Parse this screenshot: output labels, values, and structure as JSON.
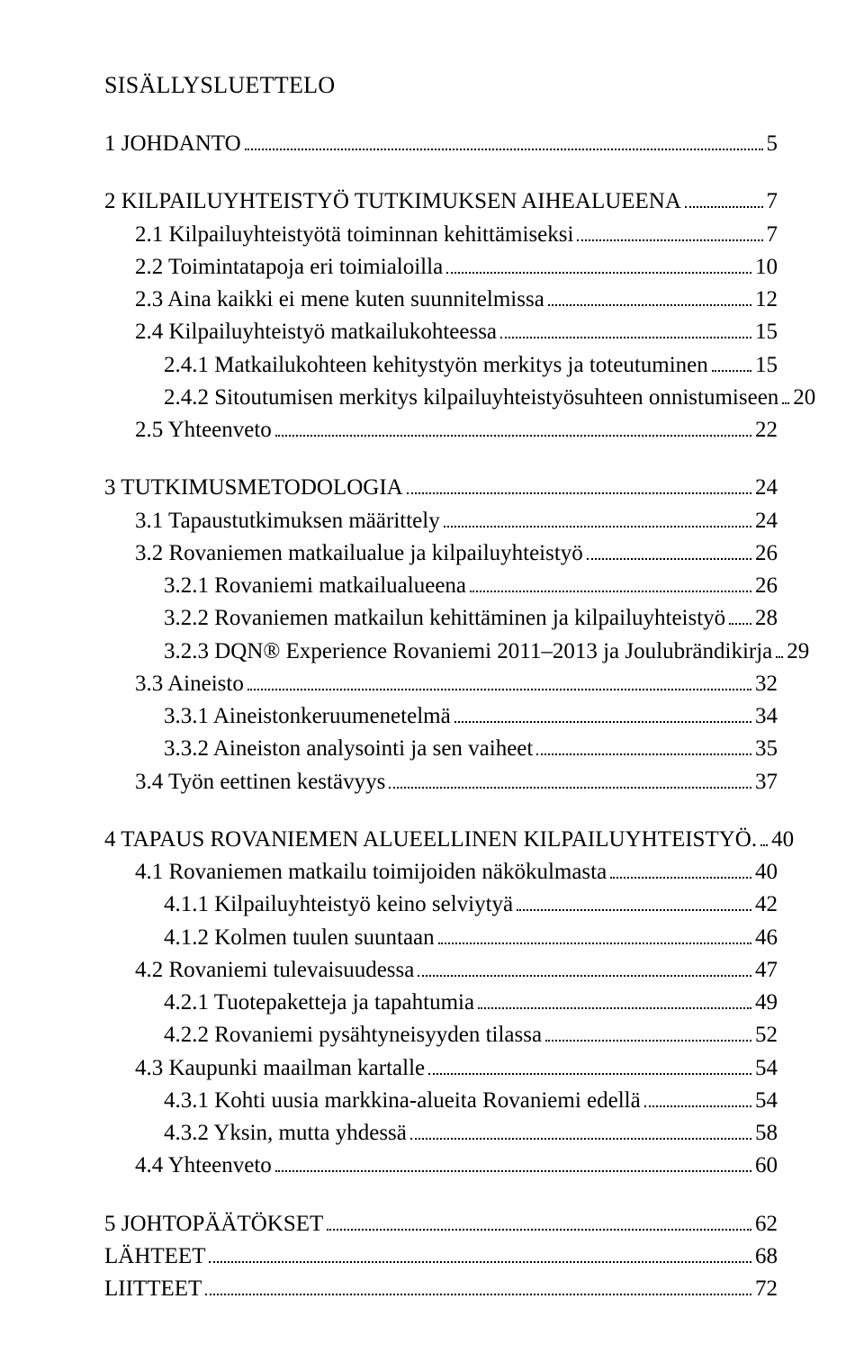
{
  "title": "SISÄLLYSLUETTELO",
  "font_family": "Times New Roman",
  "text_color": "#000000",
  "background_color": "#ffffff",
  "title_fontsize": 26,
  "body_fontsize": 25,
  "entries": [
    {
      "level": 0,
      "label": "1 JOHDANTO",
      "page": "5",
      "gap_before": false
    },
    {
      "level": 0,
      "label": "2 KILPAILUYHTEISTYÖ TUTKIMUKSEN AIHEALUEENA",
      "page": "7",
      "gap_before": true
    },
    {
      "level": 1,
      "label": "2.1 Kilpailuyhteistyötä toiminnan kehittämiseksi",
      "page": "7"
    },
    {
      "level": 1,
      "label": "2.2 Toimintatapoja eri toimialoilla",
      "page": "10"
    },
    {
      "level": 1,
      "label": "2.3 Aina kaikki ei mene kuten suunnitelmissa",
      "page": "12"
    },
    {
      "level": 1,
      "label": "2.4 Kilpailuyhteistyö matkailukohteessa",
      "page": "15"
    },
    {
      "level": 2,
      "label": "2.4.1 Matkailukohteen kehitystyön merkitys ja toteutuminen",
      "page": "15"
    },
    {
      "level": 2,
      "label": "2.4.2 Sitoutumisen merkitys kilpailuyhteistyösuhteen onnistumiseen",
      "page": "20"
    },
    {
      "level": 1,
      "label": "2.5 Yhteenveto",
      "page": "22"
    },
    {
      "level": 0,
      "label": "3 TUTKIMUSMETODOLOGIA",
      "page": "24",
      "gap_before": true
    },
    {
      "level": 1,
      "label": "3.1 Tapaustutkimuksen määrittely",
      "page": "24"
    },
    {
      "level": 1,
      "label": "3.2 Rovaniemen matkailualue ja kilpailuyhteistyö",
      "page": "26"
    },
    {
      "level": 2,
      "label": "3.2.1 Rovaniemi matkailualueena",
      "page": "26"
    },
    {
      "level": 2,
      "label": "3.2.2 Rovaniemen matkailun kehittäminen ja kilpailuyhteistyö",
      "page": "28"
    },
    {
      "level": 2,
      "label": "3.2.3 DQN® Experience Rovaniemi 2011–2013 ja Joulubrändikirja",
      "page": "29"
    },
    {
      "level": 1,
      "label": "3.3 Aineisto",
      "page": "32"
    },
    {
      "level": 2,
      "label": "3.3.1 Aineistonkeruumenetelmä",
      "page": "34"
    },
    {
      "level": 2,
      "label": "3.3.2 Aineiston analysointi ja sen vaiheet",
      "page": "35"
    },
    {
      "level": 1,
      "label": "3.4 Työn eettinen kestävyys",
      "page": "37"
    },
    {
      "level": 0,
      "label": "4 TAPAUS ROVANIEMEN ALUEELLINEN KILPAILUYHTEISTYÖ.",
      "page": "40",
      "gap_before": true
    },
    {
      "level": 1,
      "label": "4.1 Rovaniemen matkailu toimijoiden näkökulmasta",
      "page": "40"
    },
    {
      "level": 2,
      "label": "4.1.1 Kilpailuyhteistyö keino selviytyä",
      "page": "42"
    },
    {
      "level": 2,
      "label": "4.1.2 Kolmen tuulen suuntaan",
      "page": "46"
    },
    {
      "level": 1,
      "label": "4.2 Rovaniemi tulevaisuudessa",
      "page": "47"
    },
    {
      "level": 2,
      "label": "4.2.1 Tuotepaketteja ja tapahtumia",
      "page": "49"
    },
    {
      "level": 2,
      "label": "4.2.2 Rovaniemi pysähtyneisyyden tilassa",
      "page": "52"
    },
    {
      "level": 1,
      "label": "4.3 Kaupunki maailman kartalle",
      "page": "54"
    },
    {
      "level": 2,
      "label": "4.3.1 Kohti uusia markkina-alueita Rovaniemi edellä",
      "page": "54"
    },
    {
      "level": 2,
      "label": "4.3.2 Yksin, mutta yhdessä",
      "page": "58"
    },
    {
      "level": 1,
      "label": "4.4 Yhteenveto",
      "page": "60"
    },
    {
      "level": 0,
      "label": "5 JOHTOPÄÄTÖKSET",
      "page": "62",
      "gap_before": true
    },
    {
      "level": 0,
      "label": "LÄHTEET",
      "page": "68"
    },
    {
      "level": 0,
      "label": "LIITTEET",
      "page": "72"
    }
  ]
}
